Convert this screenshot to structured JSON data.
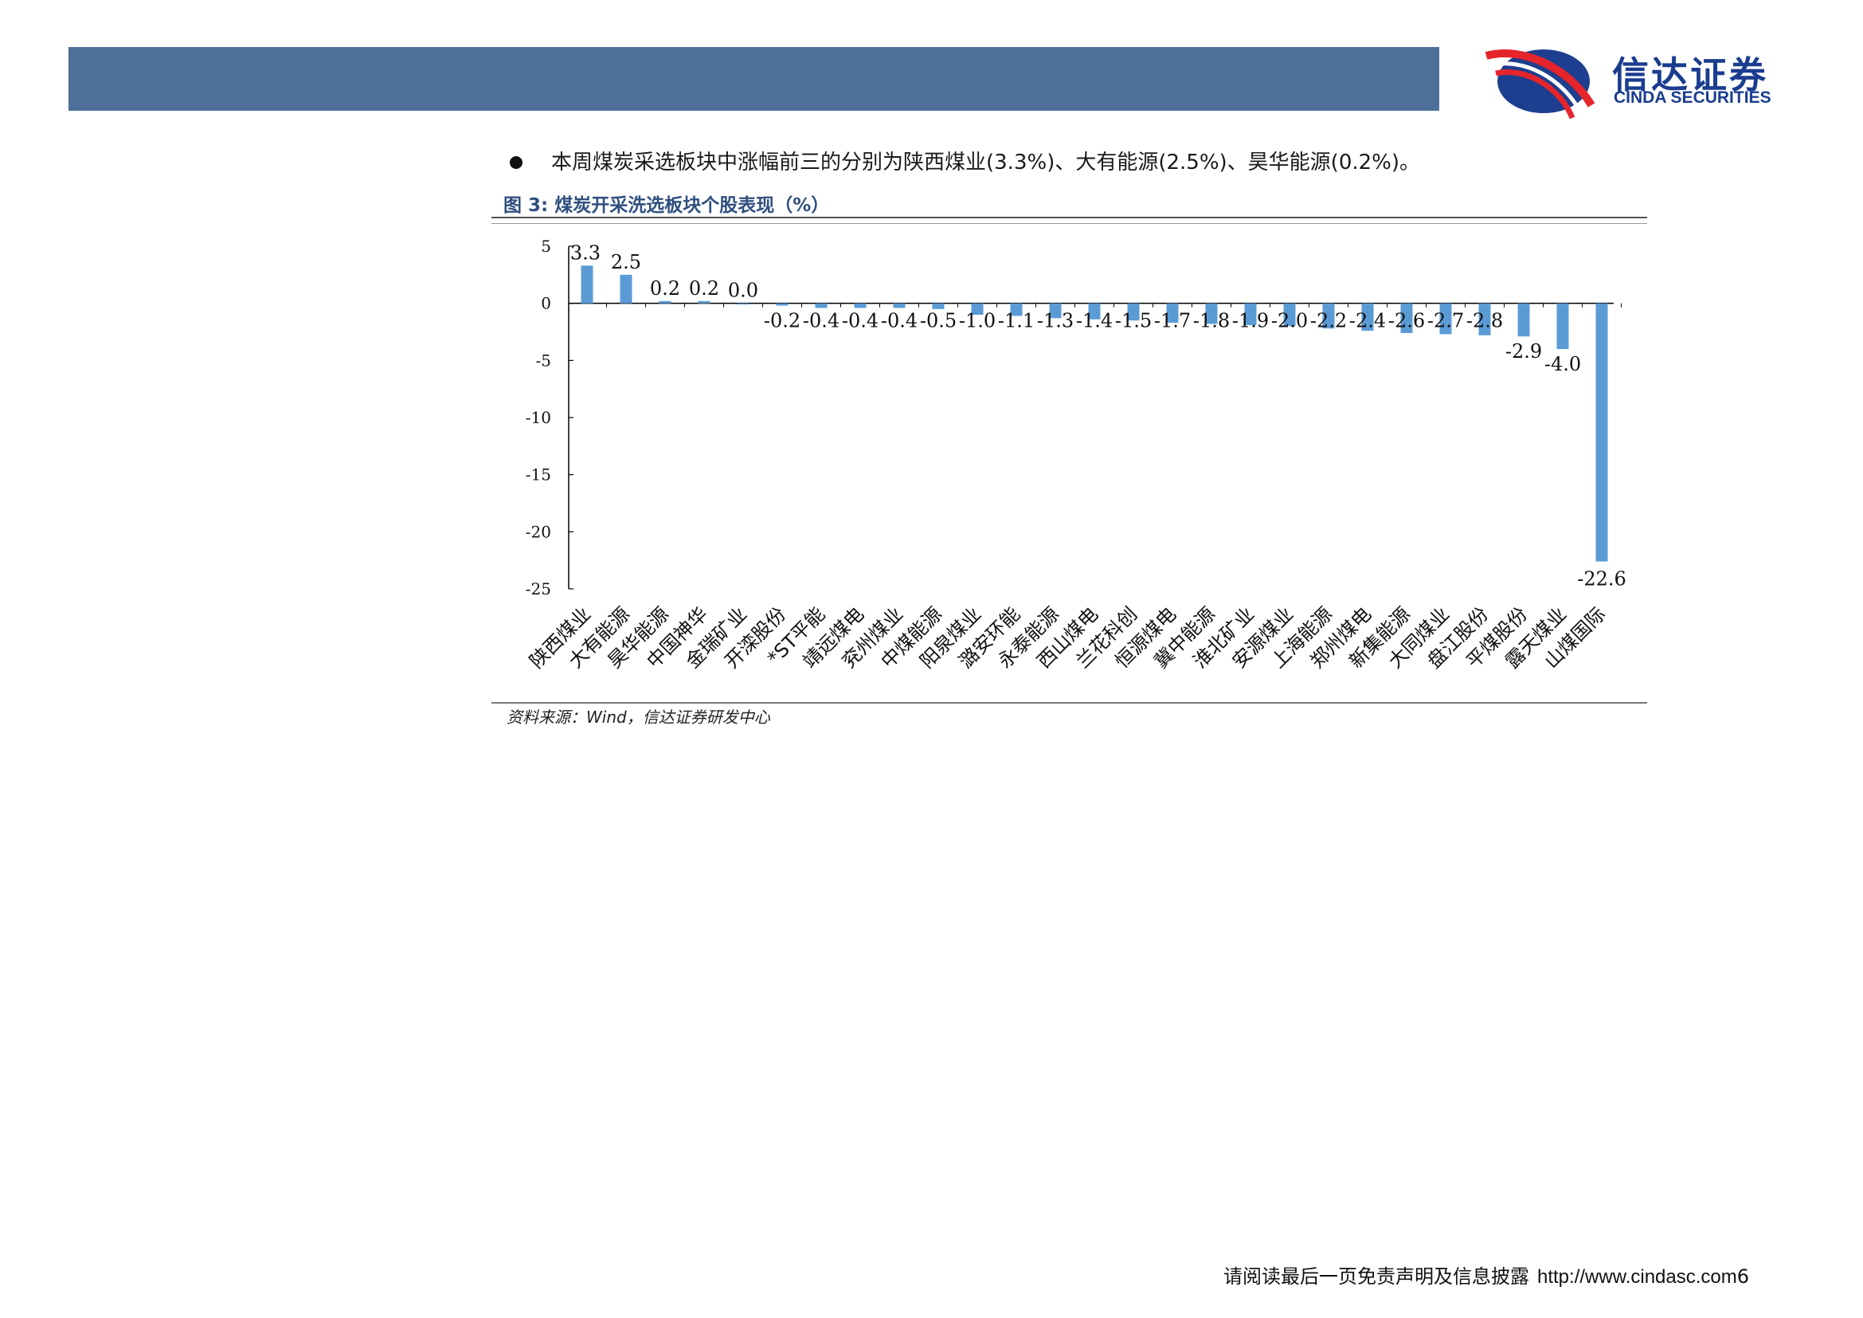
{
  "header": {
    "logo_cn": "信达证券",
    "logo_en": "CINDA SECURITIES",
    "bar_color": "#4d6f99"
  },
  "bullet": "本周煤炭采选板块中涨幅前三的分别为陕西煤业(3.3%)、大有能源(2.5%)、昊华能源(0.2%)。",
  "figure": {
    "title": "图 3:  煤炭开采洗选板块个股表现（%）",
    "source": "资料来源：Wind，信达证券研发中心"
  },
  "chart_data": {
    "type": "bar",
    "title": "煤炭开采洗选板块个股表现（%）",
    "categories": [
      "陕西煤业",
      "大有能源",
      "昊华能源",
      "中国神华",
      "金瑞矿业",
      "开滦股份",
      "*ST平能",
      "靖远煤电",
      "兖州煤业",
      "中煤能源",
      "阳泉煤业",
      "潞安环能",
      "永泰能源",
      "西山煤电",
      "兰花科创",
      "恒源煤电",
      "冀中能源",
      "淮北矿业",
      "安源煤业",
      "上海能源",
      "郑州煤电",
      "新集能源",
      "大同煤业",
      "盘江股份",
      "平煤股份",
      "露天煤业",
      "山煤国际"
    ],
    "values": [
      3.3,
      2.5,
      0.2,
      0.2,
      0.0,
      -0.2,
      -0.4,
      -0.4,
      -0.4,
      -0.5,
      -1.0,
      -1.1,
      -1.3,
      -1.4,
      -1.5,
      -1.7,
      -1.8,
      -1.9,
      -2.0,
      -2.2,
      -2.4,
      -2.6,
      -2.7,
      -2.8,
      -2.9,
      -4.0,
      -22.6
    ],
    "labels": [
      "3.3",
      "2.5",
      "0.2",
      "0.2",
      "0.0",
      "-0.2",
      "-0.4",
      "-0.4",
      "-0.4",
      "-0.5",
      "-1.0",
      "-1.1",
      "-1.3",
      "-1.4",
      "-1.5",
      "-1.7",
      "-1.8",
      "-1.9",
      "-2.0",
      "-2.2",
      "-2.4",
      "-2.6",
      "-2.7",
      "-2.8",
      "-2.9",
      "-4.0",
      "-22.6"
    ],
    "yticks": [
      "5",
      "0",
      "-5",
      "-10",
      "-15",
      "-20",
      "-25"
    ],
    "ylim": [
      -25,
      5
    ],
    "bar_color": "#5b9bd5",
    "xlabel": "",
    "ylabel": ""
  },
  "footer": {
    "disclaimer": "请阅读最后一页免责声明及信息披露",
    "url": "http://www.cindasc.com",
    "page": "6"
  }
}
